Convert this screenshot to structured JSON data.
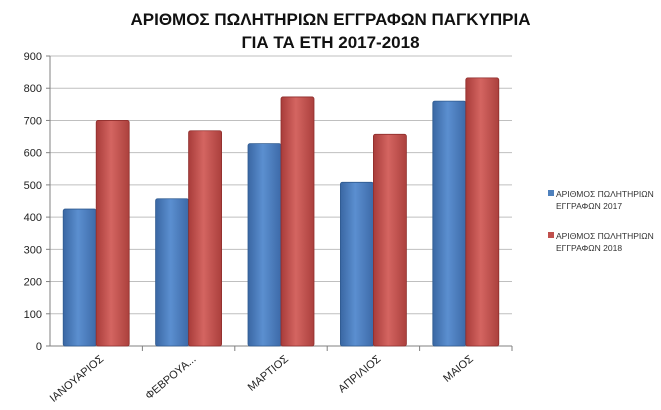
{
  "chart_data": {
    "type": "bar",
    "title_lines": [
      "ΑΡΙΘΜΟΣ ΠΩΛΗΤΗΡΙΩΝ ΕΓΓΡΑΦΩΝ ΠΑΓΚΥΠΡΙΑ",
      "ΓΙΑ ΤΑ ΕΤΗ 2017-2018"
    ],
    "categories": [
      "ΙΑΝΟΥΑΡΙΟΣ",
      "ΦΕΒΡΟΥΑ...",
      "ΜΑΡΤΙΟΣ",
      "ΑΠΡΙΛΙΟΣ",
      "ΜΑΙΟΣ"
    ],
    "series": [
      {
        "name": "ΑΡΙΘΜΟΣ ΠΩΛΗΤΗΡΙΩΝ ΕΓΓΡΑΦΩΝ 2017",
        "color": "#4f81bd",
        "values": [
          425,
          457,
          628,
          508,
          760
        ]
      },
      {
        "name": "ΑΡΙΘΜΟΣ ΠΩΛΗΤΗΡΙΩΝ ΕΓΓΡΑΦΩΝ 2018",
        "color": "#c0504d",
        "values": [
          700,
          668,
          773,
          657,
          832
        ]
      }
    ],
    "ylim": [
      0,
      900
    ],
    "yticks": [
      0,
      100,
      200,
      300,
      400,
      500,
      600,
      700,
      800,
      900
    ],
    "grid": true,
    "legend_position": "right"
  }
}
